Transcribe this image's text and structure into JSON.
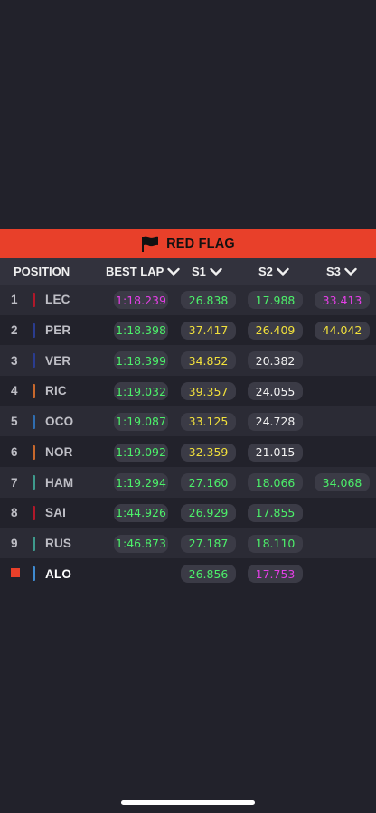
{
  "banner": {
    "label": "RED FLAG",
    "icon": "flag-icon"
  },
  "header": {
    "position": "POSITION",
    "best_lap": "BEST LAP",
    "s1": "S1",
    "s2": "S2",
    "s3": "S3"
  },
  "colors": {
    "green": "#4cf06a",
    "purple": "#e43fe6",
    "yellow": "#f2e13b",
    "white": "#f2f2f2",
    "red_flag": "#e8402a"
  },
  "rows": [
    {
      "pos": "1",
      "driver": "LEC",
      "team_color": "#b0182a",
      "best": "1:18.239",
      "best_c": "purple",
      "s1": "26.838",
      "s1_c": "green",
      "s2": "17.988",
      "s2_c": "green",
      "s3": "33.413",
      "s3_c": "purple"
    },
    {
      "pos": "2",
      "driver": "PER",
      "team_color": "#2a3c8f",
      "best": "1:18.398",
      "best_c": "green",
      "s1": "37.417",
      "s1_c": "yellow",
      "s2": "26.409",
      "s2_c": "yellow",
      "s3": "44.042",
      "s3_c": "yellow"
    },
    {
      "pos": "3",
      "driver": "VER",
      "team_color": "#2a3c8f",
      "best": "1:18.399",
      "best_c": "green",
      "s1": "34.852",
      "s1_c": "yellow",
      "s2": "20.382",
      "s2_c": "white",
      "s3": "",
      "s3_c": "white"
    },
    {
      "pos": "4",
      "driver": "RIC",
      "team_color": "#c8682c",
      "best": "1:19.032",
      "best_c": "green",
      "s1": "39.357",
      "s1_c": "yellow",
      "s2": "24.055",
      "s2_c": "white",
      "s3": "",
      "s3_c": "white"
    },
    {
      "pos": "5",
      "driver": "OCO",
      "team_color": "#2f6db0",
      "best": "1:19.087",
      "best_c": "green",
      "s1": "33.125",
      "s1_c": "yellow",
      "s2": "24.728",
      "s2_c": "white",
      "s3": "",
      "s3_c": "white"
    },
    {
      "pos": "6",
      "driver": "NOR",
      "team_color": "#c8682c",
      "best": "1:19.092",
      "best_c": "green",
      "s1": "32.359",
      "s1_c": "yellow",
      "s2": "21.015",
      "s2_c": "white",
      "s3": "",
      "s3_c": "white"
    },
    {
      "pos": "7",
      "driver": "HAM",
      "team_color": "#3e9a8c",
      "best": "1:19.294",
      "best_c": "green",
      "s1": "27.160",
      "s1_c": "green",
      "s2": "18.066",
      "s2_c": "green",
      "s3": "34.068",
      "s3_c": "green"
    },
    {
      "pos": "8",
      "driver": "SAI",
      "team_color": "#b0182a",
      "best": "1:44.926",
      "best_c": "green",
      "s1": "26.929",
      "s1_c": "green",
      "s2": "17.855",
      "s2_c": "green",
      "s3": "",
      "s3_c": "white"
    },
    {
      "pos": "9",
      "driver": "RUS",
      "team_color": "#3e9a8c",
      "best": "1:46.873",
      "best_c": "green",
      "s1": "27.187",
      "s1_c": "green",
      "s2": "18.110",
      "s2_c": "green",
      "s3": "",
      "s3_c": "white"
    },
    {
      "pos": "",
      "driver": "ALO",
      "team_color": "#3f8ad0",
      "best": "",
      "best_c": "white",
      "s1": "26.856",
      "s1_c": "green",
      "s2": "17.753",
      "s2_c": "purple",
      "s3": "",
      "s3_c": "white",
      "stopped": true,
      "active": true
    }
  ]
}
